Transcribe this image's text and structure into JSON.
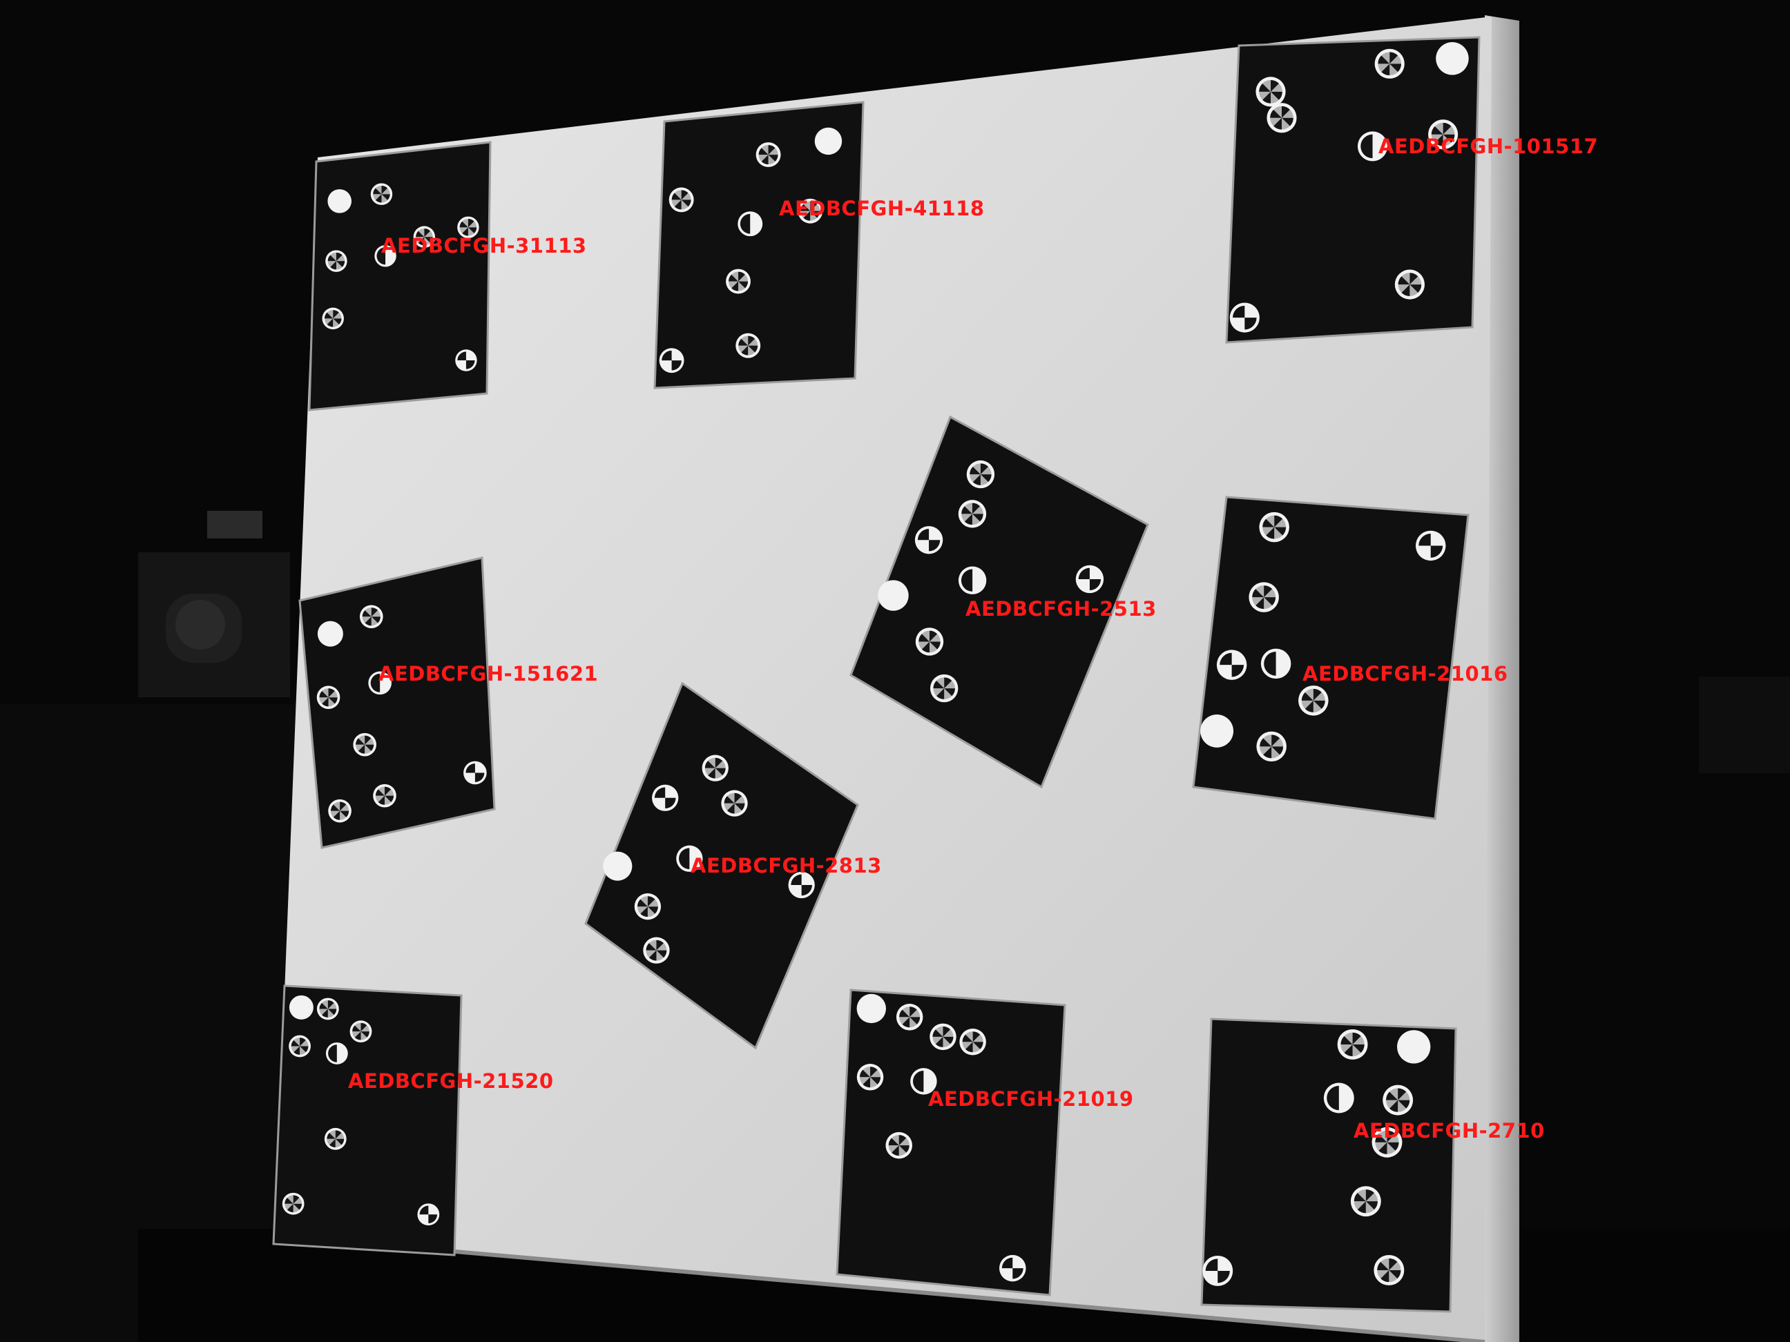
{
  "image": {
    "description_colors": {
      "background": "#070707",
      "board": "#d9d9d9",
      "board_edge": "#bdbdbd",
      "panel": "#101010",
      "dot": "#f2f2f2",
      "label": "#ff1a1a"
    },
    "panels": [
      {
        "id": "AEDBCFGH-31113",
        "label": "AEDBCFGH-31113"
      },
      {
        "id": "AEDBCFGH-41118",
        "label": "AEDBCFGH-41118"
      },
      {
        "id": "AEDBCFGH-101517",
        "label": "AEDBCFGH-101517"
      },
      {
        "id": "AEDBCFGH-2513",
        "label": "AEDBCFGH-2513"
      },
      {
        "id": "AEDBCFGH-151621",
        "label": "AEDBCFGH-151621"
      },
      {
        "id": "AEDBCFGH-21016",
        "label": "AEDBCFGH-21016"
      },
      {
        "id": "AEDBCFGH-2813",
        "label": "AEDBCFGH-2813"
      },
      {
        "id": "AEDBCFGH-21520",
        "label": "AEDBCFGH-21520"
      },
      {
        "id": "AEDBCFGH-21019",
        "label": "AEDBCFGH-21019"
      },
      {
        "id": "AEDBCFGH-2710",
        "label": "AEDBCFGH-2710"
      }
    ]
  }
}
